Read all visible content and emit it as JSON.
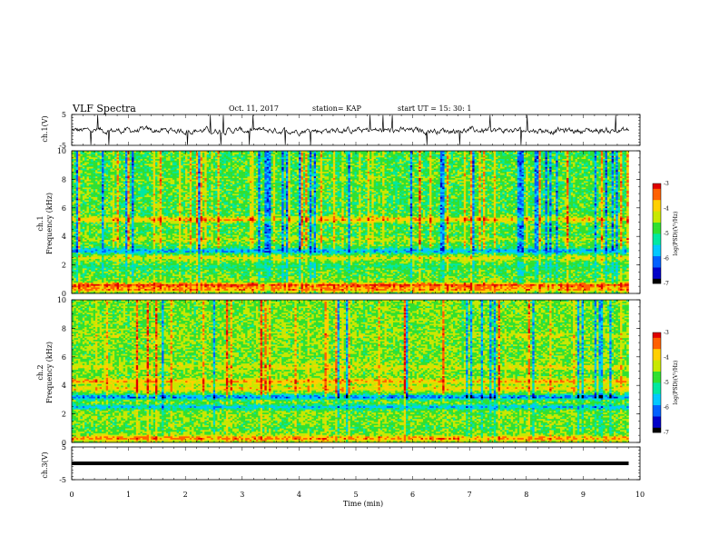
{
  "header": {
    "title": "VLF Spectra",
    "date": "Oct. 11, 2017",
    "station": "station= KAP",
    "start": "start  UT =   15: 30: 1"
  },
  "colors": {
    "colormap": [
      "#000000",
      "#0000c8",
      "#0060ff",
      "#00c8ff",
      "#00e8a0",
      "#30e030",
      "#c8e800",
      "#ffd000",
      "#ff6000",
      "#e00000",
      "#ffffff"
    ]
  },
  "chart_data": [
    {
      "type": "line",
      "panel": "ch1-waveform",
      "ylabel": "ch.1(V)",
      "ylim": [
        -5,
        5
      ],
      "yticks": [
        "5",
        "-5"
      ],
      "xlim": [
        0,
        10
      ],
      "description_values": "noisy waveform approx -2.5 to 2.5 V with spikes to ±5 V",
      "y_mean": -0.2,
      "y_spread": 1.2
    },
    {
      "type": "heatmap",
      "panel": "ch1-spectrogram",
      "ylabel": "ch.1\nFrequency (kHz)",
      "ylim": [
        0,
        10
      ],
      "yticks": [
        "0",
        "2",
        "4",
        "6",
        "8",
        "10"
      ],
      "xlim": [
        0,
        9.8
      ],
      "colorbar": {
        "label": "log(PSD)(V²/Hz)",
        "range": [
          -7,
          -3
        ],
        "ticks": [
          "-3",
          "-4",
          "-5",
          "-6",
          "-7"
        ]
      },
      "bands": [
        {
          "f": 0.3,
          "level": -3.6
        },
        {
          "f": 0.6,
          "level": -3.2
        },
        {
          "f": 1.0,
          "level": -4.6
        },
        {
          "f": 1.9,
          "level": -5.0
        },
        {
          "f": 2.5,
          "level": -4.2
        },
        {
          "f": 3.0,
          "level": -5.8
        },
        {
          "f": 3.8,
          "level": -4.4
        },
        {
          "f": 5.2,
          "level": -3.8
        },
        {
          "f": 6.5,
          "level": -4.8
        },
        {
          "f": 8.0,
          "level": -4.6
        }
      ],
      "background_level": -4.8
    },
    {
      "type": "heatmap",
      "panel": "ch2-spectrogram",
      "ylabel": "ch.2\nFrequency (kHz)",
      "ylim": [
        0,
        10
      ],
      "yticks": [
        "0",
        "2",
        "4",
        "6",
        "8",
        "10"
      ],
      "xlim": [
        0,
        9.8
      ],
      "colorbar": {
        "label": "log(PSD)(V²/Hz)",
        "range": [
          -7,
          -3
        ],
        "ticks": [
          "-3",
          "-4",
          "-5",
          "-6",
          "-7"
        ]
      },
      "bands": [
        {
          "f": 0.3,
          "level": -3.6
        },
        {
          "f": 1.0,
          "level": -4.8
        },
        {
          "f": 2.5,
          "level": -5.6
        },
        {
          "f": 3.2,
          "level": -6.0
        },
        {
          "f": 3.8,
          "level": -4.0
        },
        {
          "f": 4.3,
          "level": -3.8
        },
        {
          "f": 5.3,
          "level": -4.2
        },
        {
          "f": 7.5,
          "level": -4.4
        }
      ],
      "background_level": -4.6
    },
    {
      "type": "line",
      "panel": "ch3-waveform",
      "ylabel": "ch.3(V)",
      "ylim": [
        -5,
        5
      ],
      "yticks": [
        "5",
        "0",
        "-5"
      ],
      "xlim": [
        0,
        9.8
      ],
      "values_constant": 0
    }
  ],
  "xaxis": {
    "label": "Time (min)",
    "ticks": [
      "0",
      "1",
      "2",
      "3",
      "4",
      "5",
      "6",
      "7",
      "8",
      "9",
      "10"
    ],
    "range": [
      0,
      10
    ]
  }
}
